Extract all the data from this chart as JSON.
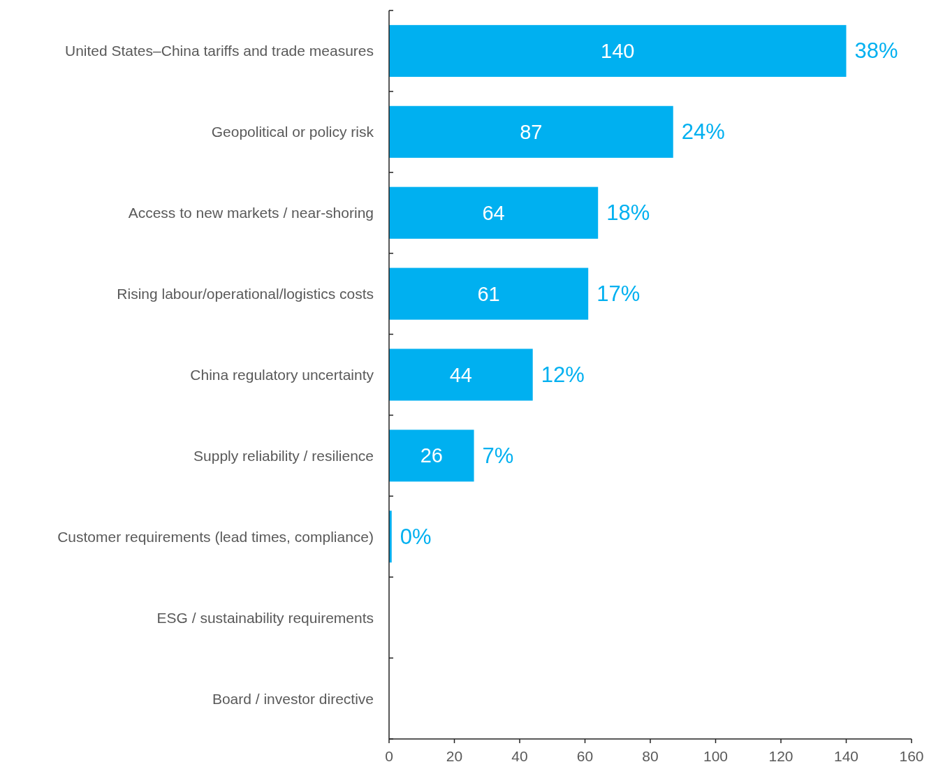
{
  "chart_data": {
    "type": "bar",
    "orientation": "horizontal",
    "categories": [
      "United States–China tariffs and trade measures",
      "Geopolitical or policy risk",
      "Access to new markets / near-shoring",
      "Rising labour/operational/logistics costs",
      "China regulatory uncertainty",
      "Supply reliability / resilience",
      "Customer requirements (lead times, compliance)",
      "ESG / sustainability requirements",
      "Board / investor directive"
    ],
    "values": [
      140,
      87,
      64,
      61,
      44,
      26,
      0.8,
      null,
      null
    ],
    "value_labels": [
      "140",
      "87",
      "64",
      "61",
      "44",
      "26",
      null,
      null,
      null
    ],
    "color": "#00b0f0",
    "xlim": [
      0,
      160
    ],
    "xticks": [
      0,
      20,
      40,
      60,
      80,
      100,
      120,
      140,
      160
    ],
    "grid": false,
    "annotations": [
      {
        "text": "38%",
        "x": 140,
        "y": "United States–China tariffs and trade measures"
      },
      {
        "text": "24%",
        "x": 87,
        "y": "Geopolitical or policy risk"
      },
      {
        "text": "18%",
        "x": 64,
        "y": "Access to new markets / near-shoring"
      },
      {
        "text": "17%",
        "x": 61,
        "y": "Rising labour/operational/logistics costs"
      },
      {
        "text": "12%",
        "x": 44,
        "y": "China regulatory uncertainty"
      },
      {
        "text": "7%",
        "x": 26,
        "y": "Supply reliability / resilience"
      },
      {
        "text": "0%",
        "x": 0.8,
        "y": "Customer requirements (lead times, compliance)"
      }
    ]
  }
}
